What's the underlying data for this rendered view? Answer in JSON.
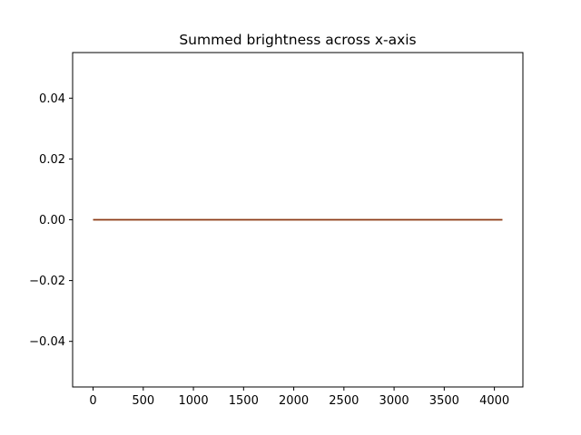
{
  "chart_data": {
    "type": "line",
    "title": "Summed brightness across x-axis",
    "xlabel": "",
    "ylabel": "",
    "xlim": [
      -204,
      4284
    ],
    "ylim": [
      -0.055,
      0.055
    ],
    "xticks": [
      0,
      500,
      1000,
      1500,
      2000,
      2500,
      3000,
      3500,
      4000
    ],
    "xtick_labels": [
      "0",
      "500",
      "1000",
      "1500",
      "2000",
      "2500",
      "3000",
      "3500",
      "4000"
    ],
    "yticks": [
      -0.04,
      -0.02,
      0.0,
      0.02,
      0.04
    ],
    "ytick_labels": [
      "−0.04",
      "−0.02",
      "0.00",
      "0.02",
      "0.04"
    ],
    "grid": false,
    "series": [
      {
        "color": "#1f77b4",
        "x": [
          0,
          4080
        ],
        "y": [
          0,
          0
        ]
      },
      {
        "color": "#ff7f0e",
        "x": [
          0,
          4080
        ],
        "y": [
          0,
          0
        ]
      },
      {
        "color": "#8c3a1a",
        "x": [
          0,
          4080
        ],
        "y": [
          0,
          0
        ]
      }
    ]
  }
}
